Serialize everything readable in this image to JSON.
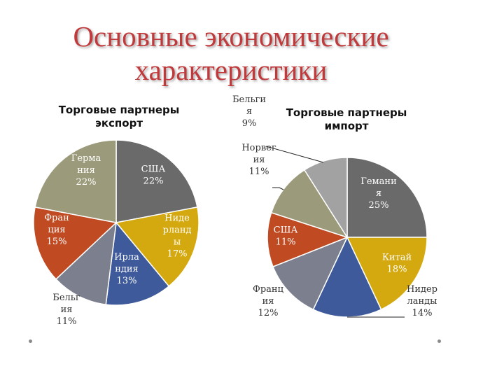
{
  "slide": {
    "title_line1": "Основные экономические",
    "title_line2": "характеристики"
  },
  "chart_data": [
    {
      "type": "pie",
      "title": [
        "Торговые партнеры",
        "экспорт"
      ],
      "slices": [
        {
          "label": [
            "США",
            "22%"
          ],
          "value": 22,
          "color": "#6a6a6a"
        },
        {
          "label": [
            "Ниде",
            "рланд",
            "ы",
            "17%"
          ],
          "value": 17,
          "color": "#d4a80f"
        },
        {
          "label": [
            "Ирла",
            "ндия",
            "13%"
          ],
          "value": 13,
          "color": "#3e5a9a"
        },
        {
          "label": [
            "Бельг",
            "ия",
            "11%"
          ],
          "value": 11,
          "color": "#7c7f8e"
        },
        {
          "label": [
            "Фран",
            "ция",
            "15%"
          ],
          "value": 15,
          "color": "#c04a22"
        },
        {
          "label": [
            "Герма",
            "ния",
            "22%"
          ],
          "value": 22,
          "color": "#9b9a7a"
        }
      ]
    },
    {
      "type": "pie",
      "title": [
        "Торговые партнеры",
        "импорт"
      ],
      "slices": [
        {
          "label": [
            "Гемани",
            "я",
            "25%"
          ],
          "value": 25,
          "color": "#6a6a6a"
        },
        {
          "label": [
            "Китай",
            "18%"
          ],
          "value": 18,
          "color": "#d4a80f"
        },
        {
          "label": [
            "Нидер",
            "ланды",
            "14%"
          ],
          "value": 14,
          "color": "#3e5a9a"
        },
        {
          "label": [
            "Франц",
            "ия",
            "12%"
          ],
          "value": 12,
          "color": "#7c7f8e"
        },
        {
          "label": [
            "США",
            "11%"
          ],
          "value": 11,
          "color": "#c04a22"
        },
        {
          "label": [
            "Норвег",
            "ия",
            "11%"
          ],
          "value": 11,
          "color": "#9b9a7a"
        },
        {
          "label": [
            "Бельги",
            "я",
            "9%"
          ],
          "value": 9,
          "color": "#a2a2a2"
        }
      ]
    }
  ]
}
